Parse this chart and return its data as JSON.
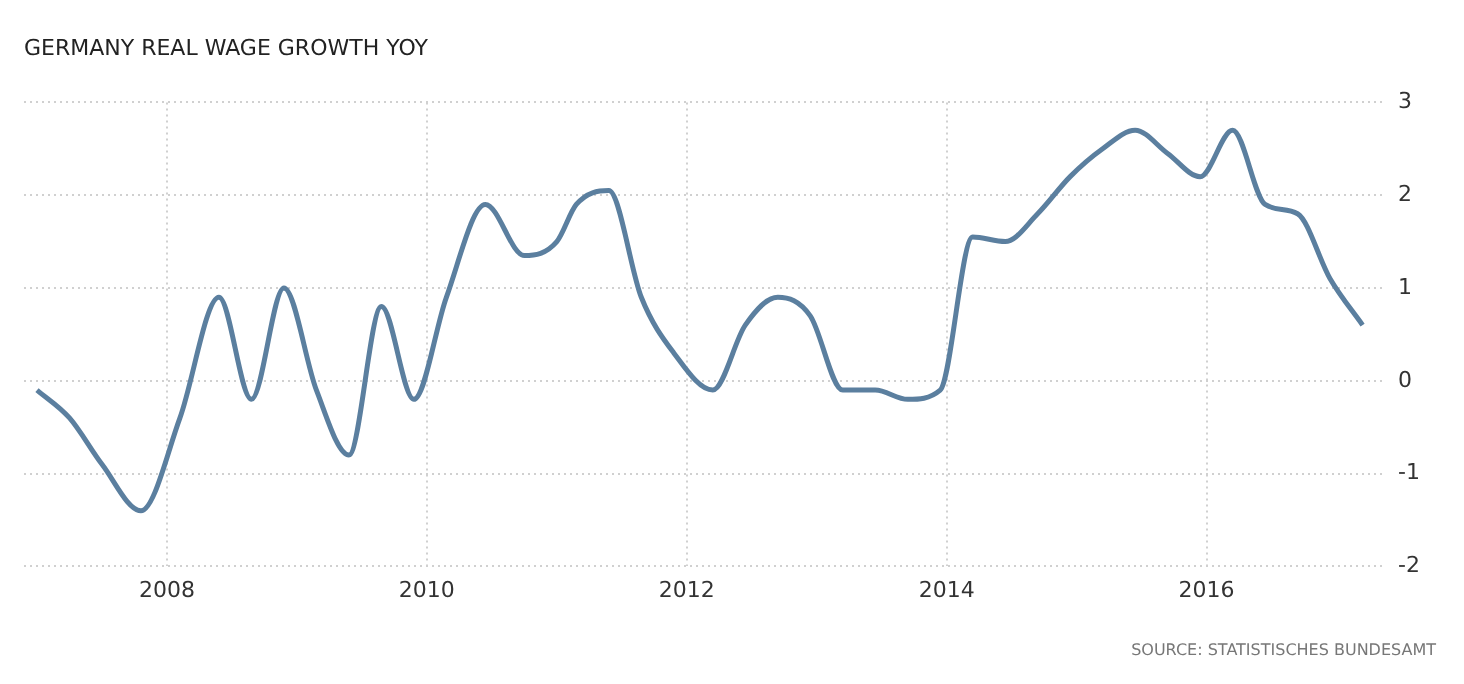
{
  "chart_data": {
    "type": "line",
    "title": "GERMANY REAL WAGE GROWTH YOY",
    "annotations": [
      "SOURCE: STATISTISCHES BUNDESAMT"
    ],
    "x": [
      2007.0,
      2007.25,
      2007.5,
      2007.8,
      2008.1,
      2008.4,
      2008.65,
      2008.9,
      2009.15,
      2009.4,
      2009.65,
      2009.9,
      2010.15,
      2010.45,
      2010.75,
      2011.0,
      2011.15,
      2011.4,
      2011.65,
      2011.9,
      2012.2,
      2012.45,
      2012.7,
      2012.95,
      2013.2,
      2013.45,
      2013.7,
      2013.95,
      2014.2,
      2014.45,
      2014.7,
      2014.95,
      2015.2,
      2015.45,
      2015.7,
      2015.95,
      2016.2,
      2016.45,
      2016.7,
      2016.95,
      2017.2
    ],
    "series": [
      {
        "color": "#5b7f9f",
        "values": [
          -0.1,
          -0.4,
          -0.9,
          -1.4,
          -0.4,
          0.9,
          -0.2,
          1.0,
          -0.1,
          -0.8,
          0.8,
          -0.2,
          0.9,
          1.9,
          1.35,
          1.5,
          1.9,
          2.05,
          0.9,
          0.3,
          -0.1,
          0.6,
          0.9,
          0.7,
          -0.1,
          -0.1,
          -0.2,
          -0.1,
          1.55,
          1.5,
          1.8,
          2.2,
          2.5,
          2.7,
          2.45,
          2.2,
          2.7,
          1.9,
          1.8,
          1.1,
          0.6
        ]
      }
    ],
    "xlim": [
      2006.9,
      2017.35
    ],
    "xticks": [
      2008,
      2010,
      2012,
      2014,
      2016
    ],
    "ylim": [
      -2,
      3
    ],
    "yticks": [
      -2,
      -1,
      0,
      1,
      2,
      3
    ],
    "grid": true,
    "legend": false,
    "marker": "none",
    "line_style": "solid"
  }
}
